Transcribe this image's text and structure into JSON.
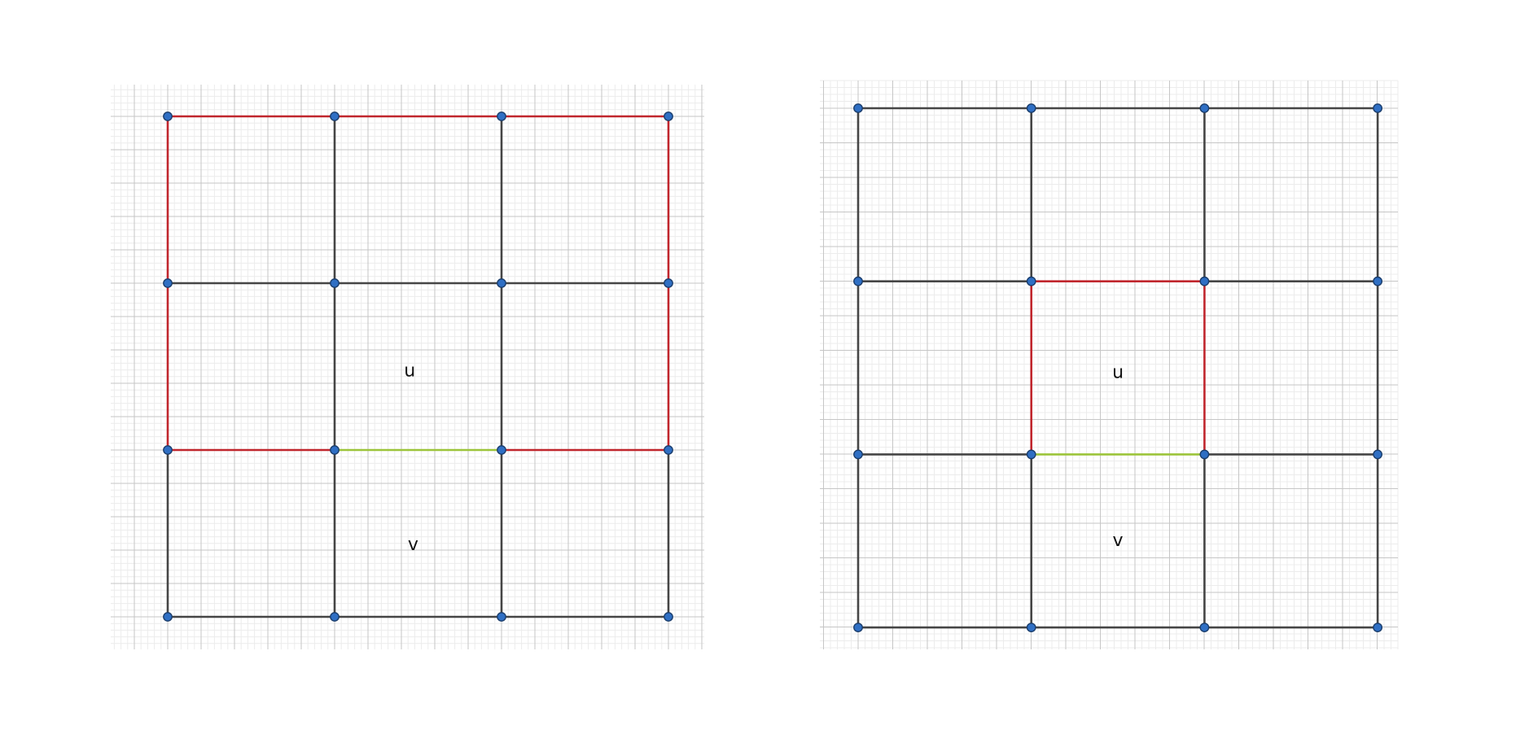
{
  "colors": {
    "background": "#ffffff",
    "grid_minor": "#ececec",
    "grid_major": "#c6c6c6",
    "edge": "#454545",
    "highlight_edge": "#c0262d",
    "shared_edge": "#9cc43a",
    "node_fill": "#2f6fc4",
    "node_stroke": "#1b3d6b"
  },
  "panels": [
    {
      "id": "left",
      "nodes_per_side": 4,
      "region_labels": [
        {
          "text": "u",
          "col": 1.45,
          "row": 1.53
        },
        {
          "text": "v",
          "col": 1.47,
          "row": 2.57
        }
      ],
      "highlight_edges": [
        [
          [
            0,
            0
          ],
          [
            1,
            0
          ]
        ],
        [
          [
            1,
            0
          ],
          [
            2,
            0
          ]
        ],
        [
          [
            2,
            0
          ],
          [
            3,
            0
          ]
        ],
        [
          [
            0,
            0
          ],
          [
            0,
            1
          ]
        ],
        [
          [
            0,
            1
          ],
          [
            0,
            2
          ]
        ],
        [
          [
            3,
            0
          ],
          [
            3,
            1
          ]
        ],
        [
          [
            3,
            1
          ],
          [
            3,
            2
          ]
        ],
        [
          [
            0,
            2
          ],
          [
            1,
            2
          ]
        ],
        [
          [
            2,
            2
          ],
          [
            3,
            2
          ]
        ]
      ],
      "shared_edges": [
        [
          [
            1,
            2
          ],
          [
            2,
            2
          ]
        ]
      ]
    },
    {
      "id": "right",
      "nodes_per_side": 4,
      "region_labels": [
        {
          "text": "u",
          "col": 1.5,
          "row": 1.53
        },
        {
          "text": "v",
          "col": 1.5,
          "row": 2.5
        }
      ],
      "highlight_edges": [
        [
          [
            1,
            1
          ],
          [
            2,
            1
          ]
        ],
        [
          [
            1,
            1
          ],
          [
            1,
            2
          ]
        ],
        [
          [
            2,
            1
          ],
          [
            2,
            2
          ]
        ]
      ],
      "shared_edges": [
        [
          [
            1,
            2
          ],
          [
            2,
            2
          ]
        ]
      ]
    }
  ]
}
